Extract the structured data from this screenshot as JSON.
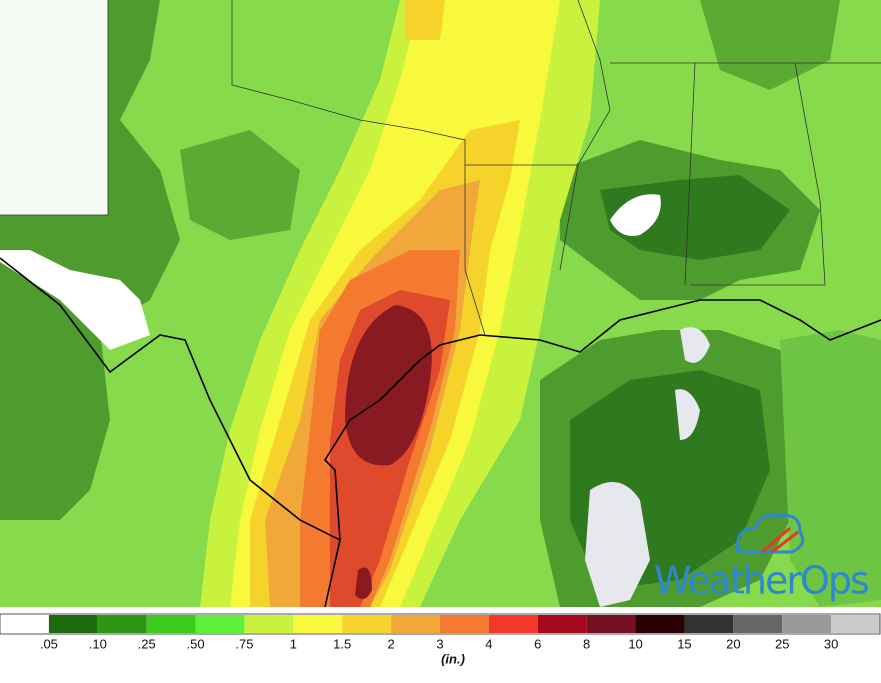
{
  "legend": {
    "labels": [
      ".05",
      ".10",
      ".25",
      ".50",
      ".75",
      "1",
      "1.5",
      "2",
      "3",
      "4",
      "6",
      "8",
      "10",
      "15",
      "20",
      "25",
      "30"
    ],
    "colors": [
      "#ffffff",
      "#1c6a0c",
      "#2d9613",
      "#3ccb1c",
      "#5cf23c",
      "#c8f23d",
      "#f8f83c",
      "#f6d32a",
      "#f1a83a",
      "#f47a30",
      "#f2392a",
      "#a5081c",
      "#74101f",
      "#2b0006",
      "#333333",
      "#666666",
      "#999999",
      "#cccccc"
    ],
    "unit": "(in.)"
  },
  "logo": {
    "text": "WeatherOps"
  }
}
